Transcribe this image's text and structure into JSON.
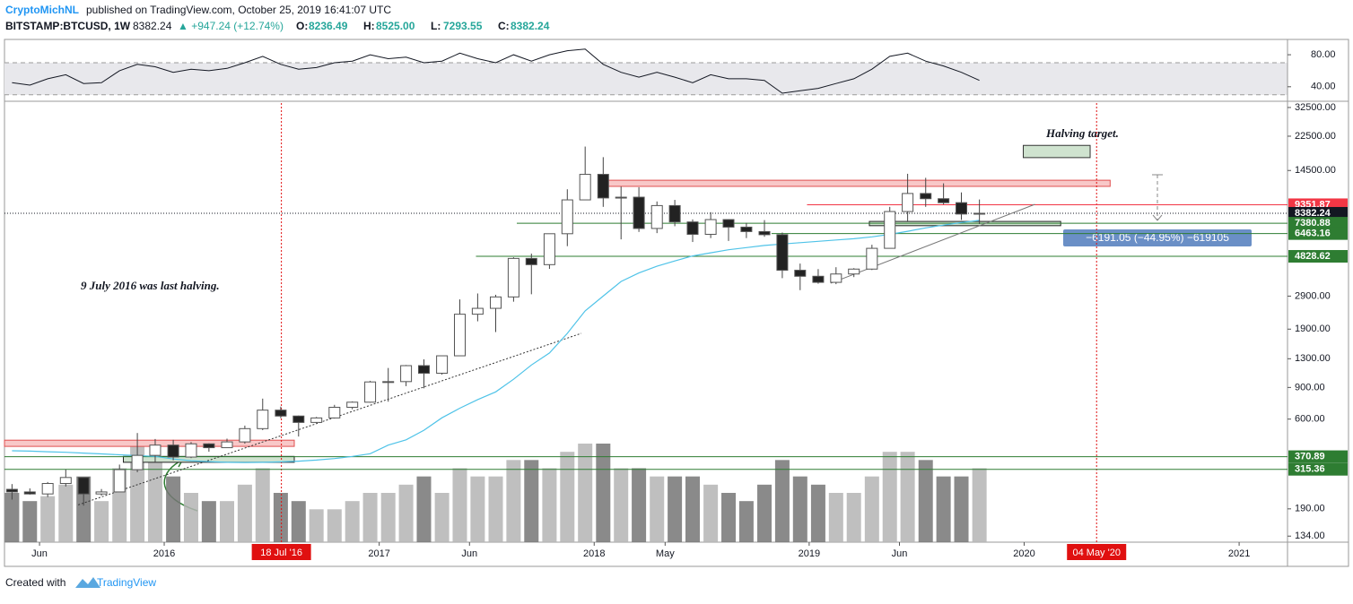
{
  "header": {
    "author": "CryptoMichNL",
    "published": "published on TradingView.com, October 25, 2019 16:41:07 UTC",
    "symbol": "BITSTAMP:BTCUSD, 1W",
    "price": "8382.24",
    "change": "▲ +947.24 (+12.74%)",
    "ohlc": [
      {
        "k": "O:",
        "v": "8236.49"
      },
      {
        "k": "H:",
        "v": "8525.00"
      },
      {
        "k": "L:",
        "v": "7293.55"
      },
      {
        "k": "C:",
        "v": "8382.24"
      }
    ]
  },
  "footer": {
    "text": "Created with",
    "brand": "TradingView"
  },
  "chart_data": {
    "type": "candlestick",
    "log_scale": true,
    "up_color": "#ffffff",
    "down_color": "#222222",
    "ma_color": "#4fc3e8",
    "volume_up_color": "#b4b4b4",
    "volume_down_color": "#767676",
    "xlim": [
      2015.257,
      2021.225
    ],
    "xticks": [
      {
        "value": 2015.42,
        "label": "Jun"
      },
      2016,
      2017,
      {
        "value": 2017.42,
        "label": "Jun"
      },
      2018,
      {
        "value": 2018.33,
        "label": "May"
      },
      2019,
      {
        "value": 2019.42,
        "label": "Jun"
      },
      2020,
      2021
    ],
    "ylim": [
      124,
      34400
    ],
    "yticks": [
      {
        "value": 32500,
        "label": "32500.00"
      },
      {
        "value": 22500,
        "label": "22500.00"
      },
      {
        "value": 14500,
        "label": "14500.00"
      },
      {
        "value": 2900,
        "label": "2900.00"
      },
      {
        "value": 1900,
        "label": "1900.00"
      },
      {
        "value": 1300,
        "label": "1300.00"
      },
      {
        "value": 900,
        "label": "900.00"
      },
      {
        "value": 600,
        "label": "600.00"
      },
      {
        "value": 190,
        "label": "190.00"
      },
      {
        "value": 134,
        "label": "134.00"
      }
    ],
    "rsi_lim": [
      23,
      98
    ],
    "rsi_ticks": [
      {
        "value": 80,
        "label": "80.00"
      },
      {
        "value": 40,
        "label": "40.00"
      }
    ],
    "rsi_bands": [
      70,
      30
    ],
    "x": [
      2015.292,
      2015.375,
      2015.458,
      2015.542,
      2015.625,
      2015.708,
      2015.792,
      2015.875,
      2015.958,
      2016.042,
      2016.125,
      2016.208,
      2016.292,
      2016.375,
      2016.458,
      2016.542,
      2016.625,
      2016.708,
      2016.792,
      2016.875,
      2016.958,
      2017.042,
      2017.125,
      2017.208,
      2017.292,
      2017.375,
      2017.458,
      2017.542,
      2017.625,
      2017.708,
      2017.792,
      2017.875,
      2017.958,
      2018.042,
      2018.125,
      2018.208,
      2018.292,
      2018.375,
      2018.458,
      2018.542,
      2018.625,
      2018.708,
      2018.792,
      2018.875,
      2018.958,
      2019.042,
      2019.125,
      2019.208,
      2019.292,
      2019.375,
      2019.458,
      2019.542,
      2019.625,
      2019.708,
      2019.792
    ],
    "open": [
      244,
      236,
      230,
      263,
      284,
      230,
      236,
      314,
      377,
      430,
      369,
      437,
      416,
      448,
      531,
      673,
      624,
      575,
      609,
      698,
      745,
      966,
      970,
      1190,
      1080,
      1350,
      2300,
      2480,
      2870,
      4700,
      4340,
      6450,
      9950,
      13800,
      10200,
      10300,
      6900,
      9250,
      7500,
      6400,
      7730,
      7020,
      6630,
      6370,
      4040,
      3740,
      3460,
      3850,
      4100,
      5350,
      8570,
      10800,
      10100,
      9600,
      8300
    ],
    "high": [
      261,
      247,
      268,
      315,
      285,
      245,
      335,
      502,
      465,
      460,
      447,
      440,
      467,
      552,
      780,
      704,
      628,
      617,
      720,
      753,
      980,
      1155,
      1200,
      1290,
      1350,
      2780,
      3000,
      2950,
      4770,
      5000,
      6470,
      11400,
      19700,
      17200,
      11800,
      11700,
      9750,
      9950,
      7750,
      8500,
      7760,
      7410,
      7680,
      6550,
      4400,
      4100,
      4200,
      4150,
      5600,
      9100,
      13900,
      13200,
      12300,
      10950,
      10000
    ],
    "low": [
      214,
      228,
      221,
      253,
      198,
      225,
      236,
      304,
      345,
      354,
      364,
      395,
      414,
      438,
      521,
      607,
      480,
      571,
      604,
      680,
      740,
      750,
      915,
      890,
      1060,
      1350,
      2100,
      1830,
      2700,
      2970,
      4110,
      5500,
      9950,
      9100,
      6000,
      6600,
      6500,
      7100,
      5800,
      6100,
      5880,
      6100,
      6200,
      3650,
      3130,
      3400,
      3380,
      3700,
      4050,
      5350,
      7500,
      9100,
      9400,
      7700,
      7300
    ],
    "close": [
      236,
      230,
      263,
      284,
      230,
      236,
      314,
      377,
      430,
      369,
      437,
      416,
      448,
      531,
      673,
      624,
      575,
      609,
      698,
      745,
      966,
      970,
      1190,
      1080,
      1350,
      2300,
      2480,
      2870,
      4700,
      4340,
      6450,
      9950,
      13800,
      10200,
      10300,
      6900,
      9250,
      7500,
      6400,
      7730,
      7020,
      6630,
      6370,
      4040,
      3740,
      3460,
      3850,
      4100,
      5350,
      8570,
      10800,
      10100,
      9600,
      8300,
      8382.24
    ],
    "ma": [
      400,
      398,
      395,
      392,
      388,
      384,
      380,
      376,
      372,
      360,
      352,
      348,
      345,
      344,
      345,
      347,
      350,
      355,
      362,
      372,
      385,
      430,
      460,
      520,
      610,
      690,
      770,
      850,
      1000,
      1200,
      1400,
      1800,
      2400,
      2900,
      3500,
      3900,
      4250,
      4550,
      4850,
      5050,
      5250,
      5400,
      5550,
      5650,
      5750,
      5850,
      5950,
      6050,
      6200,
      6400,
      6650,
      6950,
      7200,
      7450,
      7650
    ],
    "rsi": [
      45,
      42,
      50,
      55,
      44,
      45,
      60,
      68,
      65,
      58,
      62,
      60,
      63,
      70,
      78,
      68,
      62,
      64,
      70,
      72,
      80,
      75,
      77,
      70,
      72,
      82,
      75,
      70,
      80,
      72,
      80,
      85,
      87,
      68,
      58,
      52,
      58,
      52,
      45,
      55,
      50,
      50,
      48,
      32,
      35,
      38,
      44,
      50,
      62,
      78,
      82,
      72,
      66,
      58,
      48
    ],
    "volume": [
      30,
      25,
      28,
      35,
      40,
      25,
      45,
      60,
      50,
      40,
      30,
      25,
      25,
      35,
      45,
      30,
      25,
      20,
      20,
      25,
      30,
      30,
      35,
      40,
      30,
      45,
      40,
      40,
      50,
      50,
      45,
      55,
      60,
      60,
      45,
      45,
      40,
      40,
      40,
      35,
      30,
      25,
      35,
      50,
      40,
      35,
      30,
      30,
      40,
      55,
      55,
      50,
      40,
      40,
      45
    ],
    "levels": [
      {
        "value": 9351.87,
        "color": "#f23645",
        "from": 2018.99
      },
      {
        "value": 8382.24,
        "color": "#131722",
        "style": "dotted"
      },
      {
        "value": 7380.88,
        "color": "#2e7d32",
        "from": 2017.64
      },
      {
        "value": 6463.16,
        "color": "#2e7d32",
        "from": 2018.825
      },
      {
        "value": 4828.62,
        "color": "#2e7d32",
        "from": 2017.45
      },
      {
        "value": 370.89,
        "color": "#2e7d32"
      },
      {
        "value": 315.36,
        "color": "#2e7d32"
      }
    ],
    "zones": [
      {
        "x": [
          2015.257,
          2016.605
        ],
        "y": [
          423,
          458
        ],
        "fill": "#f8c8c8",
        "stroke": "#e05050"
      },
      {
        "x": [
          2015.81,
          2016.605
        ],
        "y": [
          345,
          372
        ],
        "fill": "#cfe3cf",
        "stroke": "#222222"
      },
      {
        "x": [
          2018.045,
          2020.4
        ],
        "y": [
          11830,
          12800
        ],
        "fill": "#f8c8c8",
        "stroke": "#e05050"
      },
      {
        "x": [
          2019.28,
          2020.17
        ],
        "y": [
          7150,
          7550
        ],
        "fill": "#cfe3cf",
        "stroke": "#222222"
      },
      {
        "x": [
          2019.996,
          2020.307
        ],
        "y": [
          17100,
          20000
        ],
        "fill": "#cfe3cf",
        "stroke": "#333333"
      }
    ],
    "trendlines": [
      {
        "x": [
          2015.6,
          2017.94
        ],
        "y": [
          200,
          1800
        ],
        "style": "dotted",
        "color": "#333333"
      },
      {
        "x": [
          2019.1,
          2020.05
        ],
        "y": [
          3420,
          9400
        ],
        "style": "solid",
        "color": "#777777"
      }
    ],
    "date_markers": [
      {
        "x": 2016.545,
        "label": "18 Jul '16"
      },
      {
        "x": 2020.337,
        "label": "04 May '20"
      }
    ],
    "annotations": {
      "halving": "9 July 2016 was last halving.",
      "target": "Halving target.",
      "measure": "−6191.05 (−44.95%) −619105"
    }
  }
}
